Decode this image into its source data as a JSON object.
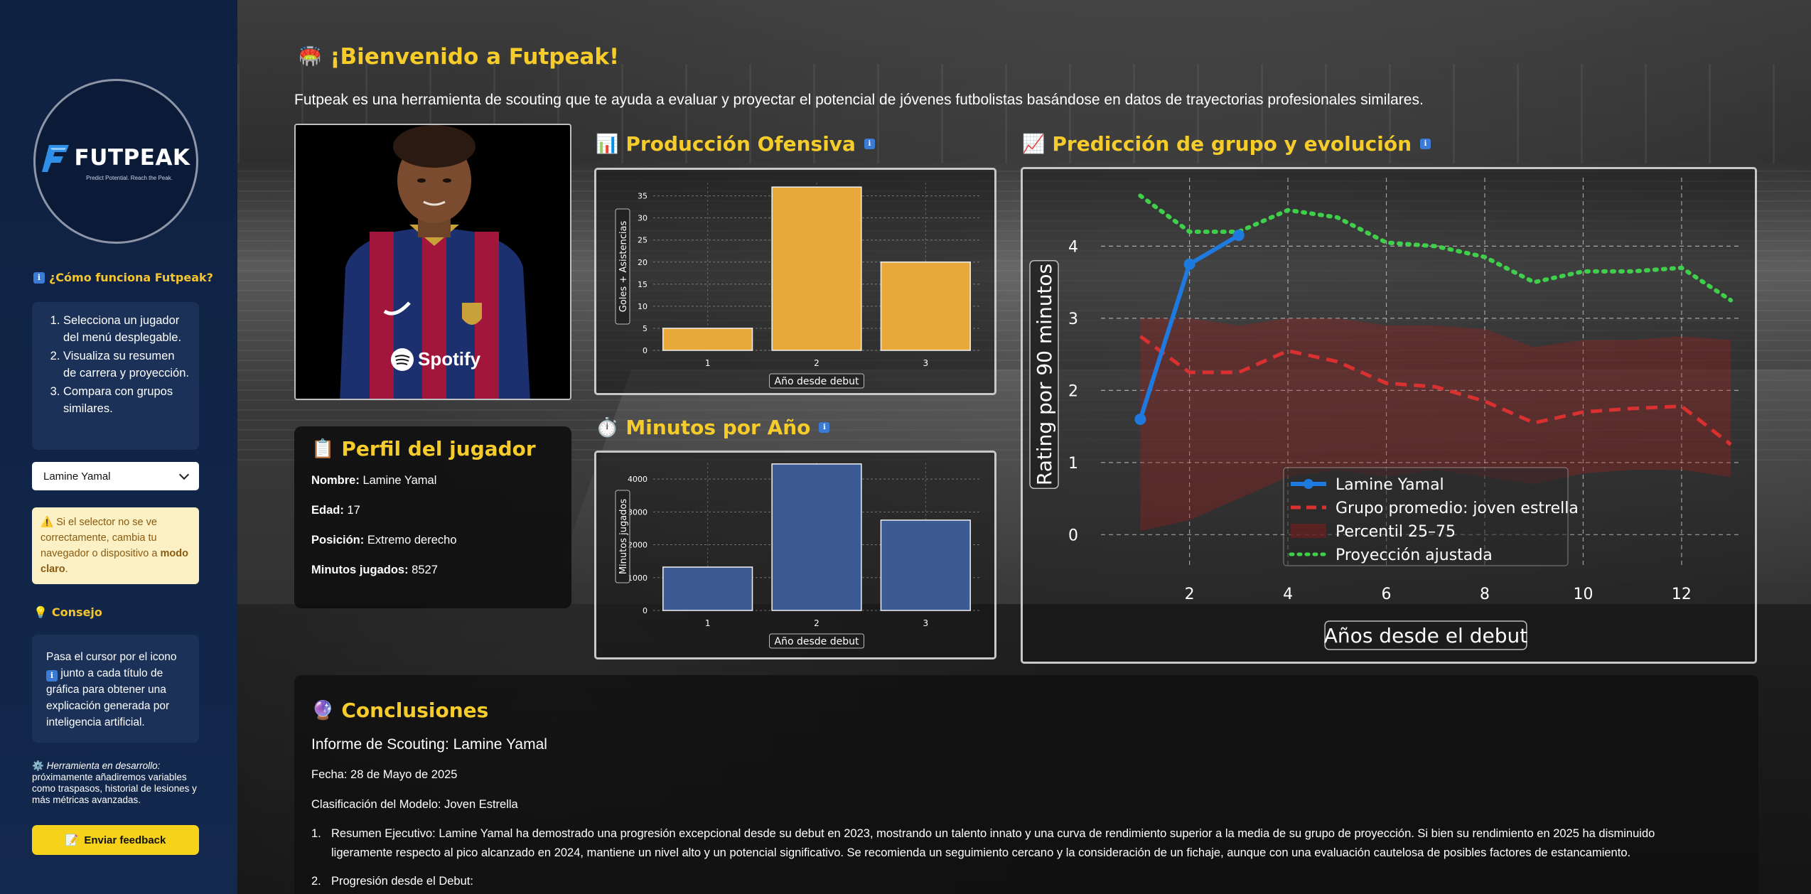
{
  "sidebar": {
    "logo": {
      "name": "FUTPEAK",
      "tagline": "Predict Potential. Reach the Peak."
    },
    "how_title": "¿Cómo funciona Futpeak?",
    "steps": [
      "Selecciona un jugador del menú desplegable.",
      "Visualiza su resumen de carrera y proyección.",
      "Compara con grupos similares."
    ],
    "player_select": {
      "selected": "Lamine Yamal"
    },
    "warning": {
      "prefix": "⚠️ Si el selector no se ve correctamente, cambia tu navegador o dispositivo a ",
      "bold": "modo claro",
      "suffix": "."
    },
    "tip_title": "Consejo",
    "tip_text_1": "Pasa el cursor por el icono",
    "tip_text_2": "junto a cada título de gráfica para obtener una explicación generada por inteligencia artificial.",
    "dev_note_italic": "Herramienta en desarrollo:",
    "dev_note_text": "próximamente añadiremos variables como traspasos, historial de lesiones y más métricas avanzadas.",
    "feedback_label": "Enviar feedback",
    "icons": {
      "info": "info-icon",
      "tip": "bulb-icon",
      "dev": "gear-icon",
      "feedback": "pencil-icon"
    }
  },
  "header": {
    "title": "¡Bienvenido a Futpeak!",
    "intro": "Futpeak es una herramienta de scouting que te ayuda a evaluar y proyectar el potencial de jóvenes futbolistas basándose en datos de trayectorias profesionales similares."
  },
  "profile": {
    "title": "Perfil del jugador",
    "labels": {
      "name": "Nombre:",
      "age": "Edad:",
      "position": "Posición:",
      "minutes": "Minutos jugados:"
    },
    "values": {
      "name": "Lamine Yamal",
      "age": "17",
      "position": "Extremo derecho",
      "minutes": "8527"
    }
  },
  "sections": {
    "offense_title": "Producción Ofensiva",
    "minutes_title": "Minutos por Año",
    "prediction_title": "Predicción de grupo y evolución",
    "conclusions_title": "Conclusiones"
  },
  "conclusions": {
    "report_title": "Informe de Scouting: Lamine Yamal",
    "date": "Fecha: 28 de Mayo de 2025",
    "classification": "Clasificación del Modelo: Joven Estrella",
    "items": [
      {
        "n": "1.",
        "text": "Resumen Ejecutivo: Lamine Yamal ha demostrado una progresión excepcional desde su debut en 2023, mostrando un talento innato y una curva de rendimiento superior a la media de su grupo de proyección. Si bien su rendimiento en 2025 ha disminuido ligeramente respecto al pico alcanzado en 2024, mantiene un nivel alto y un potencial significativo. Se recomienda un seguimiento cercano y la consideración de un fichaje, aunque con una evaluación cautelosa de posibles factores de estancamiento."
      },
      {
        "n": "2.",
        "text": "Progresión desde el Debut:"
      }
    ]
  },
  "chart_data": [
    {
      "type": "bar",
      "categories": [
        "1",
        "2",
        "3"
      ],
      "values": [
        5,
        37,
        20
      ],
      "xlabel": "Año desde debut",
      "ylabel": "Goles + Asistencias",
      "ylim": [
        0,
        38
      ],
      "yticks": [
        0,
        5,
        10,
        15,
        20,
        25,
        30,
        35
      ],
      "color": "#e8a83a",
      "grid": true
    },
    {
      "type": "bar",
      "categories": [
        "1",
        "2",
        "3"
      ],
      "values": [
        1320,
        4460,
        2750
      ],
      "xlabel": "Año desde debut",
      "ylabel": "Minutos jugados",
      "ylim": [
        0,
        4500
      ],
      "yticks": [
        0,
        1000,
        2000,
        3000,
        4000
      ],
      "color": "#3c5a94",
      "grid": true
    },
    {
      "type": "line",
      "xlabel": "Años desde el debut",
      "ylabel": "Rating por 90 minutos",
      "xlim": [
        0.2,
        13.2
      ],
      "ylim": [
        -0.45,
        4.95
      ],
      "xticks": [
        2,
        4,
        6,
        8,
        10,
        12
      ],
      "yticks": [
        0,
        1,
        2,
        3,
        4
      ],
      "legend": "bottom-center",
      "grid": true,
      "series": [
        {
          "name": "Lamine Yamal",
          "color": "#1f7ae0",
          "style": "solid-markers",
          "x": [
            1,
            2,
            3
          ],
          "y": [
            1.6,
            3.75,
            4.15
          ]
        },
        {
          "name": "Grupo promedio: joven estrella",
          "color": "#d93030",
          "style": "dashed",
          "x": [
            1,
            2,
            3,
            4,
            5,
            6,
            7,
            8,
            9,
            10,
            11,
            12,
            13
          ],
          "y": [
            2.75,
            2.25,
            2.25,
            2.55,
            2.4,
            2.1,
            2.05,
            1.85,
            1.55,
            1.7,
            1.75,
            1.78,
            1.25
          ]
        },
        {
          "name": "Percentil 25–75",
          "color": "#8a1f1f",
          "style": "band",
          "x": [
            1,
            2,
            3,
            4,
            5,
            6,
            7,
            8,
            9,
            10,
            11,
            12,
            13
          ],
          "lower": [
            0.05,
            0.2,
            0.5,
            0.8,
            0.9,
            0.8,
            0.9,
            0.8,
            0.7,
            0.85,
            0.9,
            0.9,
            0.8
          ],
          "upper": [
            3.0,
            3.0,
            2.9,
            3.0,
            3.0,
            2.9,
            2.9,
            2.85,
            2.6,
            2.7,
            2.7,
            2.75,
            2.7
          ]
        },
        {
          "name": "Proyección ajustada",
          "color": "#3fcf4a",
          "style": "dotted",
          "x": [
            1,
            2,
            3,
            4,
            5,
            6,
            7,
            8,
            9,
            10,
            11,
            12,
            13
          ],
          "y": [
            4.7,
            4.2,
            4.2,
            4.5,
            4.4,
            4.05,
            4.0,
            3.85,
            3.5,
            3.65,
            3.65,
            3.7,
            3.25
          ]
        }
      ]
    }
  ]
}
